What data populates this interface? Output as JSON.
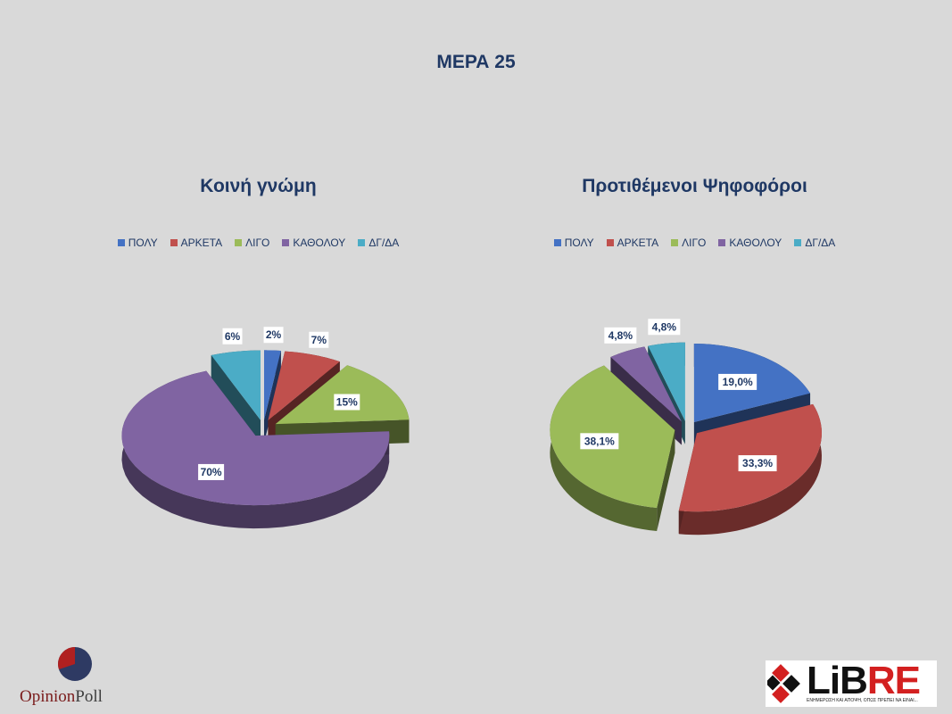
{
  "page": {
    "title": "ΜΕΡΑ 25"
  },
  "legend_labels": [
    "ΠΟΛΥ",
    "ΑΡΚΕΤΑ",
    "ΛΙΓΟ",
    "ΚΑΘΟΛΟΥ",
    "ΔΓ/ΔΑ"
  ],
  "colors": {
    "ΠΟΛΥ": "#4472c4",
    "ΑΡΚΕΤΑ": "#c0504d",
    "ΛΙΓΟ": "#9bbb59",
    "ΚΑΘΟΛΟΥ": "#8064a2",
    "ΔΓ/ΔΑ": "#4bacc6"
  },
  "chart_data": [
    {
      "type": "pie",
      "title": "Κοινή γνώμη",
      "categories": [
        "ΠΟΛΥ",
        "ΑΡΚΕΤΑ",
        "ΛΙΓΟ",
        "ΚΑΘΟΛΟΥ",
        "ΔΓ/ΔΑ"
      ],
      "values": [
        2,
        7,
        15,
        70,
        6
      ],
      "labels": [
        "2%",
        "7%",
        "15%",
        "70%",
        "6%"
      ],
      "legend": "top",
      "style": "3d-exploded"
    },
    {
      "type": "pie",
      "title": "Προτιθέμενοι Ψηφοφόροι",
      "categories": [
        "ΠΟΛΥ",
        "ΑΡΚΕΤΑ",
        "ΛΙΓΟ",
        "ΚΑΘΟΛΟΥ",
        "ΔΓ/ΔΑ"
      ],
      "values": [
        19.0,
        33.3,
        38.1,
        4.8,
        4.8
      ],
      "labels": [
        "19,0%",
        "33,3%",
        "38,1%",
        "4,8%",
        "4,8%"
      ],
      "legend": "top",
      "style": "3d-exploded"
    }
  ],
  "logos": {
    "opinionpoll": {
      "part1": "Opinion",
      "part2": "Poll"
    },
    "libre": {
      "part1": "LiB",
      "part2": "RE",
      "tagline": "ΕΝΗΜΕΡΩΣΗ ΚΑΙ ΑΠΟΨΗ, ΟΠΩΣ ΠΡΕΠΕΙ ΝΑ ΕΙΝΑΙ..."
    }
  }
}
